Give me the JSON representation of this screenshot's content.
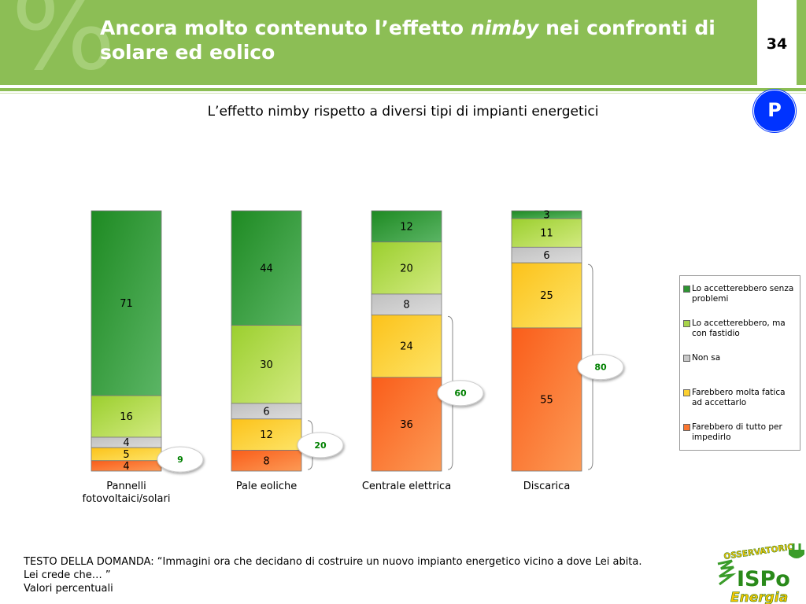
{
  "header": {
    "title_before": "Ancora molto contenuto l’effetto ",
    "title_emph": "nimby",
    "title_after": " nei confronti di solare ed eolico",
    "page_number": "34",
    "badge": "P",
    "deco_glyph": "%"
  },
  "chart_data": {
    "type": "bar",
    "stacked": true,
    "title": "L’effetto nimby rispetto a diversi tipi di impianti energetici",
    "categories": [
      "Pannelli fotovoltaici/solari",
      "Pale eoliche",
      "Centrale elettrica",
      "Discarica"
    ],
    "category_lines": [
      [
        "Pannelli",
        "fotovoltaici/solari"
      ],
      [
        "Pale eoliche"
      ],
      [
        "Centrale elettrica"
      ],
      [
        "Discarica"
      ]
    ],
    "series": [
      {
        "name": "Lo accetterebbero senza problemi",
        "values": [
          71,
          44,
          12,
          3
        ],
        "color": "#3f9e3f"
      },
      {
        "name": "Lo accetterebbero, ma con fastidio",
        "values": [
          16,
          30,
          20,
          11
        ],
        "color": "#b2d85a"
      },
      {
        "name": "Non sa",
        "values": [
          4,
          6,
          8,
          6
        ],
        "color": "#cccccc"
      },
      {
        "name": "Farebbero molta fatica ad accettarlo",
        "values": [
          5,
          12,
          24,
          25
        ],
        "color": "#fcd53a"
      },
      {
        "name": "Farebbero di tutto per impedirlo",
        "values": [
          4,
          8,
          36,
          55
        ],
        "color": "#fb7c3a"
      }
    ],
    "bracket_totals": [
      9,
      20,
      60,
      80
    ],
    "bracket_color": "#008000",
    "legend_position": "right",
    "ylim": [
      0,
      100
    ]
  },
  "legend": {
    "lines": [
      [
        "Lo accetterebbero senza",
        "problemi"
      ],
      [
        "Lo accetterebbero, ma",
        "con fastidio"
      ],
      [
        "Non sa"
      ],
      [
        "Farebbero molta fatica",
        "ad accettarlo"
      ],
      [
        "Farebbero di tutto per",
        "impedirlo"
      ]
    ]
  },
  "footer": {
    "line1": "TESTO DELLA DOMANDA: “Immagini ora che decidano di costruire un nuovo impianto energetico vicino a dove Lei abita.",
    "line2": "Lei crede che… ”",
    "line3": "Valori percentuali"
  },
  "logo": {
    "top_text": "OSSERVATORIO",
    "brand": "ISPo",
    "bottom_text": "Energia"
  }
}
